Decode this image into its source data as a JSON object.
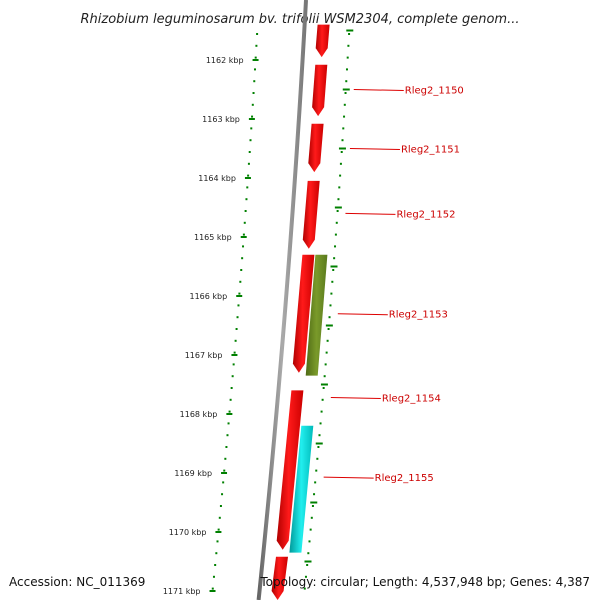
{
  "title": "Rhizobium leguminosarum bv. trifolii WSM2304, complete genom...",
  "footer": {
    "accession": "Accession: NC_011369",
    "summary": "Topology: circular; Length: 4,537,948 bp; Genes: 4,387"
  },
  "colors": {
    "backbone": "#888888",
    "forward_gene": "#ff0000",
    "reverse_gene_olive": "#6b8e23",
    "reverse_gene_cyan": "#00cccc",
    "tick": "#008000",
    "gene_label": "#cc0000",
    "label_line": "#dd0000"
  },
  "ticks": [
    {
      "label": "1162 kbp",
      "kbp": 1162
    },
    {
      "label": "1163 kbp",
      "kbp": 1163
    },
    {
      "label": "1164 kbp",
      "kbp": 1164
    },
    {
      "label": "1165 kbp",
      "kbp": 1165
    },
    {
      "label": "1166 kbp",
      "kbp": 1166
    },
    {
      "label": "1167 kbp",
      "kbp": 1167
    },
    {
      "label": "1168 kbp",
      "kbp": 1168
    },
    {
      "label": "1169 kbp",
      "kbp": 1169
    },
    {
      "label": "1170 kbp",
      "kbp": 1170
    },
    {
      "label": "1171 kbp",
      "kbp": 1171
    }
  ],
  "genes": [
    {
      "strand": "forward",
      "color": "forward_gene",
      "start": 1161.4,
      "end": 1161.95
    },
    {
      "strand": "forward",
      "color": "forward_gene",
      "start": 1162.08,
      "end": 1162.95
    },
    {
      "strand": "forward",
      "color": "forward_gene",
      "start": 1163.08,
      "end": 1163.9
    },
    {
      "strand": "forward",
      "color": "forward_gene",
      "start": 1164.05,
      "end": 1165.2
    },
    {
      "strand": "forward",
      "color": "forward_gene",
      "start": 1165.3,
      "end": 1167.3
    },
    {
      "strand": "reverse",
      "color": "reverse_gene_olive",
      "start": 1165.3,
      "end": 1167.35
    },
    {
      "strand": "forward",
      "color": "forward_gene",
      "start": 1167.6,
      "end": 1170.3
    },
    {
      "strand": "reverse",
      "color": "reverse_gene_cyan",
      "start": 1168.2,
      "end": 1170.35
    },
    {
      "strand": "forward",
      "color": "forward_gene",
      "start": 1170.42,
      "end": 1171.2
    }
  ],
  "gene_labels": [
    {
      "name": "Rleg2_1150",
      "kbp": 1162.5
    },
    {
      "name": "Rleg2_1151",
      "kbp": 1163.5
    },
    {
      "name": "Rleg2_1152",
      "kbp": 1164.6
    },
    {
      "name": "Rleg2_1153",
      "kbp": 1166.3
    },
    {
      "name": "Rleg2_1154",
      "kbp": 1167.72
    },
    {
      "name": "Rleg2_1155",
      "kbp": 1169.07
    }
  ]
}
